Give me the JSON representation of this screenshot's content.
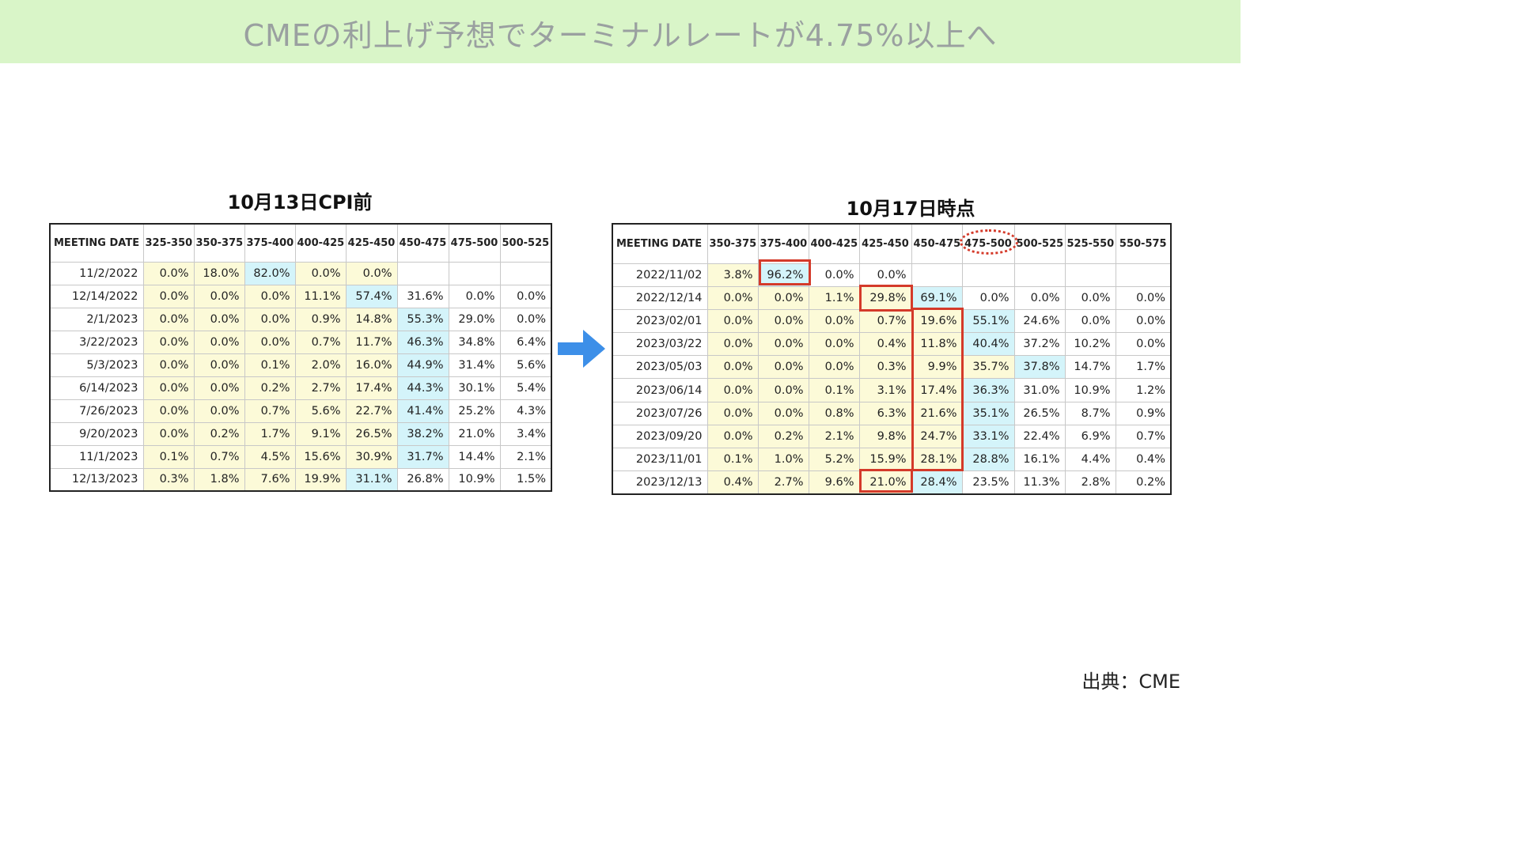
{
  "title": "CMEの利上げ予想でターミナルレートが4.75%以上へ",
  "source": "出典：CME",
  "colors": {
    "banner": "#d9f5c8",
    "yellow_cell": "#fcfad8",
    "cyan_cell": "#d4f4fa",
    "highlight": "#d43a2a",
    "arrow": "#3d8fe8"
  },
  "chart_data": [
    {
      "type": "table",
      "title": "10月13日CPI前",
      "columns": [
        "MEETING DATE",
        "325-350",
        "350-375",
        "375-400",
        "400-425",
        "425-450",
        "450-475",
        "475-500",
        "500-525"
      ],
      "rows": [
        [
          "11/2/2022",
          "0.0%",
          "18.0%",
          "82.0%",
          "0.0%",
          "0.0%",
          "",
          "",
          ""
        ],
        [
          "12/14/2022",
          "0.0%",
          "0.0%",
          "0.0%",
          "11.1%",
          "57.4%",
          "31.6%",
          "0.0%",
          "0.0%"
        ],
        [
          "2/1/2023",
          "0.0%",
          "0.0%",
          "0.0%",
          "0.9%",
          "14.8%",
          "55.3%",
          "29.0%",
          "0.0%"
        ],
        [
          "3/22/2023",
          "0.0%",
          "0.0%",
          "0.0%",
          "0.7%",
          "11.7%",
          "46.3%",
          "34.8%",
          "6.4%"
        ],
        [
          "5/3/2023",
          "0.0%",
          "0.0%",
          "0.1%",
          "2.0%",
          "16.0%",
          "44.9%",
          "31.4%",
          "5.6%"
        ],
        [
          "6/14/2023",
          "0.0%",
          "0.0%",
          "0.2%",
          "2.7%",
          "17.4%",
          "44.3%",
          "30.1%",
          "5.4%"
        ],
        [
          "7/26/2023",
          "0.0%",
          "0.0%",
          "0.7%",
          "5.6%",
          "22.7%",
          "41.4%",
          "25.2%",
          "4.3%"
        ],
        [
          "9/20/2023",
          "0.0%",
          "0.2%",
          "1.7%",
          "9.1%",
          "26.5%",
          "38.2%",
          "21.0%",
          "3.4%"
        ],
        [
          "11/1/2023",
          "0.1%",
          "0.7%",
          "4.5%",
          "15.6%",
          "30.9%",
          "31.7%",
          "14.4%",
          "2.1%"
        ],
        [
          "12/13/2023",
          "0.3%",
          "1.8%",
          "7.6%",
          "19.9%",
          "31.1%",
          "26.8%",
          "10.9%",
          "1.5%"
        ]
      ],
      "cell_colors": [
        [
          "",
          "y",
          "y",
          "c",
          "y",
          "y",
          "",
          "",
          ""
        ],
        [
          "",
          "y",
          "y",
          "y",
          "y",
          "c",
          "",
          "",
          ""
        ],
        [
          "",
          "y",
          "y",
          "y",
          "y",
          "y",
          "c",
          "",
          ""
        ],
        [
          "",
          "y",
          "y",
          "y",
          "y",
          "y",
          "c",
          "",
          ""
        ],
        [
          "",
          "y",
          "y",
          "y",
          "y",
          "y",
          "c",
          "",
          ""
        ],
        [
          "",
          "y",
          "y",
          "y",
          "y",
          "y",
          "c",
          "",
          ""
        ],
        [
          "",
          "y",
          "y",
          "y",
          "y",
          "y",
          "c",
          "",
          ""
        ],
        [
          "",
          "y",
          "y",
          "y",
          "y",
          "y",
          "c",
          "",
          ""
        ],
        [
          "",
          "y",
          "y",
          "y",
          "y",
          "y",
          "c",
          "",
          ""
        ],
        [
          "",
          "y",
          "y",
          "y",
          "y",
          "c",
          "",
          "",
          ""
        ]
      ]
    },
    {
      "type": "table",
      "title": "10月17日時点",
      "columns": [
        "MEETING DATE",
        "350-375",
        "375-400",
        "400-425",
        "425-450",
        "450-475",
        "475-500",
        "500-525",
        "525-550",
        "550-575"
      ],
      "rows": [
        [
          "2022/11/02",
          "3.8%",
          "96.2%",
          "0.0%",
          "0.0%",
          "",
          "",
          "",
          "",
          ""
        ],
        [
          "2022/12/14",
          "0.0%",
          "0.0%",
          "1.1%",
          "29.8%",
          "69.1%",
          "0.0%",
          "0.0%",
          "0.0%",
          "0.0%"
        ],
        [
          "2023/02/01",
          "0.0%",
          "0.0%",
          "0.0%",
          "0.7%",
          "19.6%",
          "55.1%",
          "24.6%",
          "0.0%",
          "0.0%"
        ],
        [
          "2023/03/22",
          "0.0%",
          "0.0%",
          "0.0%",
          "0.4%",
          "11.8%",
          "40.4%",
          "37.2%",
          "10.2%",
          "0.0%"
        ],
        [
          "2023/05/03",
          "0.0%",
          "0.0%",
          "0.0%",
          "0.3%",
          "9.9%",
          "35.7%",
          "37.8%",
          "14.7%",
          "1.7%"
        ],
        [
          "2023/06/14",
          "0.0%",
          "0.0%",
          "0.1%",
          "3.1%",
          "17.4%",
          "36.3%",
          "31.0%",
          "10.9%",
          "1.2%"
        ],
        [
          "2023/07/26",
          "0.0%",
          "0.0%",
          "0.8%",
          "6.3%",
          "21.6%",
          "35.1%",
          "26.5%",
          "8.7%",
          "0.9%"
        ],
        [
          "2023/09/20",
          "0.0%",
          "0.2%",
          "2.1%",
          "9.8%",
          "24.7%",
          "33.1%",
          "22.4%",
          "6.9%",
          "0.7%"
        ],
        [
          "2023/11/01",
          "0.1%",
          "1.0%",
          "5.2%",
          "15.9%",
          "28.1%",
          "28.8%",
          "16.1%",
          "4.4%",
          "0.4%"
        ],
        [
          "2023/12/13",
          "0.4%",
          "2.7%",
          "9.6%",
          "21.0%",
          "28.4%",
          "23.5%",
          "11.3%",
          "2.8%",
          "0.2%"
        ]
      ],
      "cell_colors": [
        [
          "",
          "y",
          "c",
          "",
          "",
          "",
          "",
          "",
          "",
          ""
        ],
        [
          "",
          "y",
          "y",
          "y",
          "y",
          "c",
          "",
          "",
          "",
          ""
        ],
        [
          "",
          "y",
          "y",
          "y",
          "y",
          "y",
          "c",
          "",
          "",
          ""
        ],
        [
          "",
          "y",
          "y",
          "y",
          "y",
          "y",
          "c",
          "",
          "",
          ""
        ],
        [
          "",
          "y",
          "y",
          "y",
          "y",
          "y",
          "y",
          "c",
          "",
          ""
        ],
        [
          "",
          "y",
          "y",
          "y",
          "y",
          "y",
          "c",
          "",
          "",
          ""
        ],
        [
          "",
          "y",
          "y",
          "y",
          "y",
          "y",
          "c",
          "",
          "",
          ""
        ],
        [
          "",
          "y",
          "y",
          "y",
          "y",
          "y",
          "c",
          "",
          "",
          ""
        ],
        [
          "",
          "y",
          "y",
          "y",
          "y",
          "y",
          "c",
          "",
          "",
          ""
        ],
        [
          "",
          "y",
          "y",
          "y",
          "y",
          "c",
          "",
          "",
          "",
          ""
        ]
      ]
    }
  ]
}
